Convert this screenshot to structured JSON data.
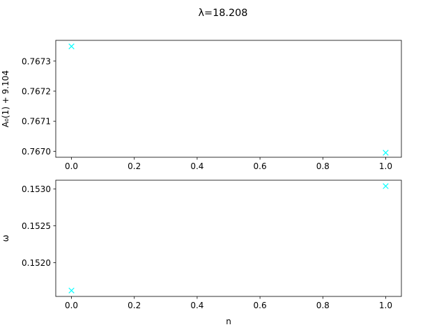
{
  "chart_data": {
    "type": "scatter",
    "title": "λ=18.208",
    "subplots": [
      {
        "name": "top",
        "xlabel": "",
        "ylabel": "A₀(1) + 9.104",
        "xlim": [
          -0.05,
          1.05
        ],
        "ylim": [
          0.76698,
          0.767369
        ],
        "xticks": [
          0.0,
          0.2,
          0.4,
          0.6,
          0.8,
          1.0
        ],
        "xtick_labels": [
          "0.0",
          "0.2",
          "0.4",
          "0.6",
          "0.8",
          "1.0"
        ],
        "yticks": [
          0.767,
          0.7671,
          0.7672,
          0.7673
        ],
        "ytick_labels": [
          "0.7670",
          "0.7671",
          "0.7672",
          "0.7673"
        ],
        "series": [
          {
            "marker": "x",
            "color": "#00ffff",
            "x": [
              0,
              1
            ],
            "y": [
              0.767349,
              0.766995
            ]
          }
        ]
      },
      {
        "name": "bottom",
        "xlabel": "n",
        "ylabel": "ω",
        "xlim": [
          -0.05,
          1.05
        ],
        "ylim": [
          0.15154,
          0.15312
        ],
        "xticks": [
          0.0,
          0.2,
          0.4,
          0.6,
          0.8,
          1.0
        ],
        "xtick_labels": [
          "0.0",
          "0.2",
          "0.4",
          "0.6",
          "0.8",
          "1.0"
        ],
        "yticks": [
          0.152,
          0.1525,
          0.153
        ],
        "ytick_labels": [
          "0.1520",
          "0.1525",
          "0.1530"
        ],
        "series": [
          {
            "marker": "x",
            "color": "#00ffff",
            "x": [
              0,
              1
            ],
            "y": [
              0.15162,
              0.15304
            ]
          }
        ]
      }
    ],
    "grid": false,
    "legend": "none"
  }
}
